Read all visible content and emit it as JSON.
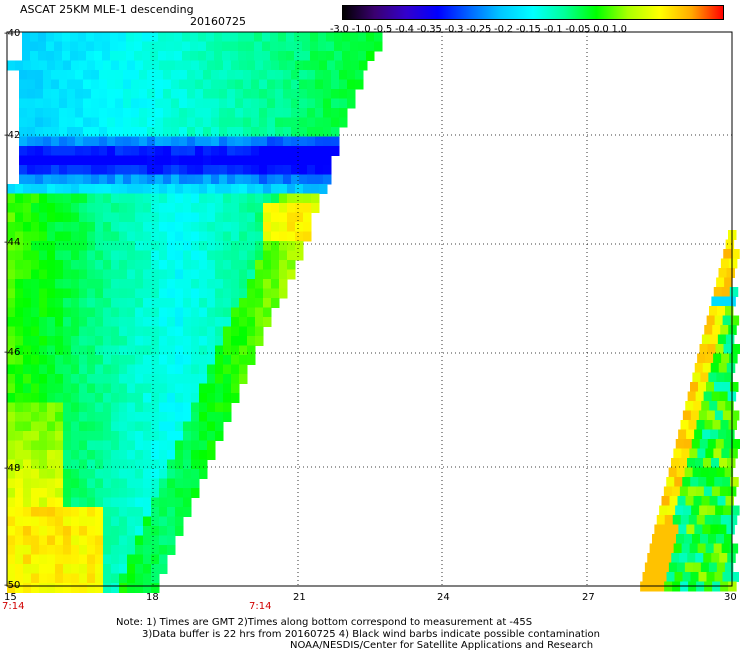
{
  "header": {
    "title": "ASCAT 25KM MLE-1 descending",
    "date": "20160725"
  },
  "colorbar": {
    "labels": "-3.0  -1.0  -0.5  -0.4  -0.35  -0.3  -0.25  -0.2  -0.15  -0.1  -0.05  0.0  1.0",
    "stops": [
      "#000000",
      "#3a0070",
      "#3300cc",
      "#0000ff",
      "#0066ff",
      "#00c8ff",
      "#00ffff",
      "#00ff99",
      "#00ff00",
      "#aaff00",
      "#ffff00",
      "#ffaa00",
      "#ff0000"
    ]
  },
  "axes": {
    "y_labels": [
      "-40",
      "-42",
      "-44",
      "-46",
      "-48",
      "-50"
    ],
    "x_labels": [
      "15",
      "18",
      "21",
      "24",
      "27",
      "30"
    ],
    "lon_range": [
      15,
      30
    ],
    "lat_range": [
      -50,
      -40
    ]
  },
  "times": [
    "7:14",
    "7:14"
  ],
  "notes": [
    "Note: 1) Times are GMT 2)Times along bottom correspond to measurement at -45S",
    "3)Data buffer is 22 hrs from 20160725 4) Black wind barbs indicate possible contamination",
    "NOAA/NESDIS/Center for Satellite Applications and Research"
  ]
}
